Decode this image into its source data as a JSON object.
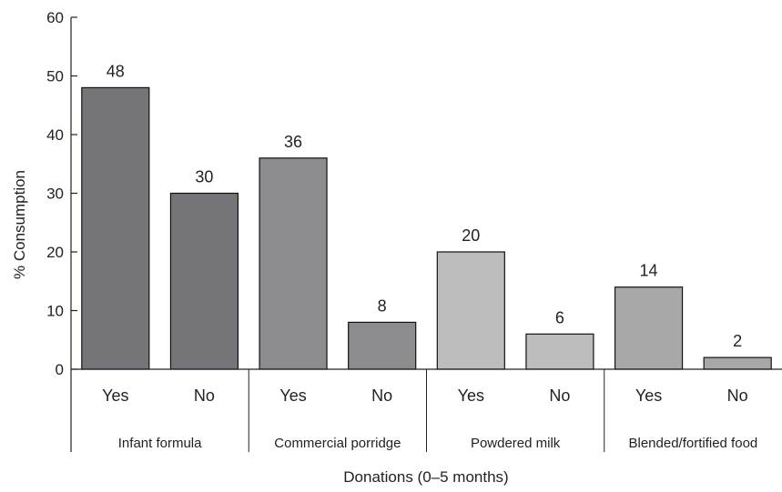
{
  "chart_data": {
    "type": "bar",
    "groups": [
      {
        "name": "Infant formula",
        "bars": [
          {
            "label": "Yes",
            "value": 48
          },
          {
            "label": "No",
            "value": 30
          }
        ]
      },
      {
        "name": "Commercial porridge",
        "bars": [
          {
            "label": "Yes",
            "value": 36
          },
          {
            "label": "No",
            "value": 8
          }
        ]
      },
      {
        "name": "Powdered milk",
        "bars": [
          {
            "label": "Yes",
            "value": 20
          },
          {
            "label": "No",
            "value": 6
          }
        ]
      },
      {
        "name": "Blended/fortified food",
        "bars": [
          {
            "label": "Yes",
            "value": 14
          },
          {
            "label": "No",
            "value": 2
          }
        ]
      }
    ],
    "ylabel": "% Consumption",
    "xlabel": "Donations (0–5 months)",
    "ylim": [
      0,
      60
    ],
    "yticks": [
      0,
      10,
      20,
      30,
      40,
      50,
      60
    ],
    "grid": false,
    "colors": {
      "Infant formula": "#757579",
      "Commercial porridge": "#8c8c8e",
      "Powdered milk": "#bdbdbd",
      "Blended/fortified food": "#a8a8a8"
    }
  }
}
